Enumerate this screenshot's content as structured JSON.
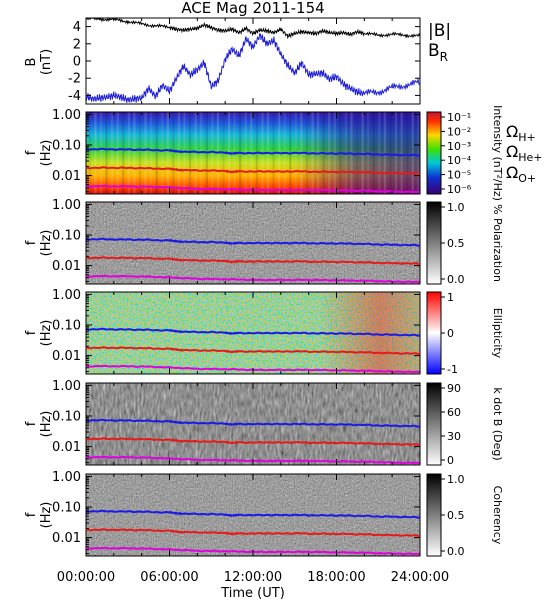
{
  "title": "ACE Mag 2011-154",
  "colors": {
    "B_total": "#000000",
    "B_R": "#1f1fd6",
    "omega_H": "#1a1ae6",
    "omega_He": "#e61a1a",
    "omega_O": "#e000e0",
    "axes": "#000000",
    "background": "#ffffff"
  },
  "chart_data": [
    {
      "type": "line",
      "ylabel": "B",
      "yunit": "(nT)",
      "ylim": [
        -5,
        5
      ],
      "yticks": [
        "4",
        "2",
        "0",
        "-2",
        "-4"
      ],
      "xlim": [
        0,
        24
      ],
      "series": [
        {
          "name": "|B|",
          "color": "#000000",
          "x": [
            0,
            1,
            2,
            3,
            4,
            5,
            6,
            6.5,
            7,
            7.5,
            8,
            8.5,
            9,
            9.5,
            10,
            10.5,
            11,
            11.5,
            12,
            12.5,
            13,
            13.5,
            14,
            14.5,
            15,
            15.5,
            16,
            16.5,
            17,
            17.5,
            18,
            18.5,
            19,
            19.5,
            20,
            21,
            22,
            23,
            24
          ],
          "y": [
            4.9,
            4.9,
            4.8,
            4.6,
            4.3,
            4.1,
            3.9,
            3.7,
            3.6,
            3.7,
            3.8,
            4.2,
            3.9,
            3.6,
            3.5,
            3.7,
            3.3,
            3.8,
            3.2,
            3.6,
            3.5,
            3.3,
            3.7,
            2.9,
            3.2,
            3.4,
            3.3,
            3.2,
            3.5,
            3.3,
            3.2,
            3.3,
            3.1,
            3.4,
            3.2,
            3.0,
            3.1,
            3.0,
            2.9
          ]
        },
        {
          "name": "B_R",
          "color": "#1f1fd6",
          "x": [
            0,
            0.5,
            1,
            1.5,
            2,
            2.5,
            3,
            3.5,
            4,
            4.5,
            5,
            5.5,
            6,
            6.5,
            7,
            7.5,
            8,
            8.5,
            9,
            9.5,
            10,
            10.5,
            11,
            11.5,
            12,
            12.5,
            13,
            13.5,
            14,
            14.5,
            15,
            15.5,
            16,
            16.5,
            17,
            17.5,
            18,
            18.5,
            19,
            19.5,
            20,
            21,
            22,
            23,
            24
          ],
          "y": [
            -4.1,
            -4.4,
            -4.3,
            -4.2,
            -4.0,
            -4.2,
            -4.5,
            -4.4,
            -4.3,
            -3.2,
            -4.1,
            -2.8,
            -3.5,
            -2.0,
            -0.6,
            -1.6,
            -1.0,
            -0.2,
            -3.0,
            -2.3,
            0.2,
            1.4,
            0.6,
            2.6,
            1.6,
            3.0,
            2.0,
            2.4,
            0.8,
            -0.5,
            -1.4,
            -0.2,
            -1.6,
            -1.5,
            -1.4,
            -2.1,
            -1.8,
            -2.7,
            -3.2,
            -3.6,
            -3.8,
            -3.6,
            -3.1,
            -2.8,
            -2.5
          ]
        }
      ],
      "legend": [
        "|B|",
        "B_R"
      ],
      "legend_position": "right"
    },
    {
      "type": "heatmap",
      "ylabel": "f",
      "yunit": "(Hz)",
      "yscale": "log",
      "ylim": [
        0.0025,
        1.2
      ],
      "yticks": [
        "1.00",
        "0.10",
        "0.01"
      ],
      "colorbar_label": "Intensity (nT²/Hz)",
      "colorbar_ticks": [
        "10⁻¹",
        "10⁻²",
        "10⁻³",
        "10⁻⁴",
        "10⁻⁵",
        "10⁻⁶"
      ],
      "colorscale": "rainbow"
    },
    {
      "type": "heatmap",
      "ylabel": "f",
      "yunit": "(Hz)",
      "yscale": "log",
      "yticks": [
        "1.00",
        "0.10",
        "0.01"
      ],
      "colorbar_label": "% Polarization",
      "colorbar_ticks": [
        "1.0",
        "0.5",
        "0.0"
      ],
      "colorscale": "gray"
    },
    {
      "type": "heatmap",
      "ylabel": "f",
      "yunit": "(Hz)",
      "yscale": "log",
      "yticks": [
        "1.00",
        "0.10",
        "0.01"
      ],
      "colorbar_label": "Ellipticity",
      "colorbar_ticks": [
        "1",
        "0",
        "-1"
      ],
      "colorscale": "blue-white-red"
    },
    {
      "type": "heatmap",
      "ylabel": "f",
      "yunit": "(Hz)",
      "yscale": "log",
      "yticks": [
        "1.00",
        "0.10",
        "0.01"
      ],
      "colorbar_label": "k dot B (Deg)",
      "colorbar_ticks": [
        "90",
        "60",
        "30",
        "0"
      ],
      "colorscale": "gray"
    },
    {
      "type": "heatmap",
      "ylabel": "f",
      "yunit": "(Hz)",
      "yscale": "log",
      "yticks": [
        "1.00",
        "0.10",
        "0.01"
      ],
      "colorbar_label": "Coherency",
      "colorbar_ticks": [
        "1.0",
        "0.5",
        "0.0"
      ],
      "colorscale": "gray"
    }
  ],
  "legend": {
    "B_total": "|B|",
    "B_R_main": "B",
    "B_R_sub": "R",
    "omega_H_main": "Ω",
    "omega_H_sub": "H+",
    "omega_He_main": "Ω",
    "omega_He_sub": "He+",
    "omega_O_main": "Ω",
    "omega_O_sub": "O+"
  },
  "gyrofrequency_lines": [
    {
      "name": "Ω_H+",
      "color": "#1a1ae6",
      "x": [
        0,
        1,
        2,
        3,
        4,
        5,
        6,
        6.5,
        7,
        8,
        9,
        10,
        10.5,
        11,
        12,
        13,
        14,
        15,
        16,
        17,
        18,
        19,
        20,
        21,
        22,
        23,
        24
      ],
      "f": [
        0.072,
        0.073,
        0.072,
        0.071,
        0.07,
        0.068,
        0.066,
        0.063,
        0.06,
        0.059,
        0.058,
        0.057,
        0.052,
        0.055,
        0.054,
        0.055,
        0.054,
        0.055,
        0.054,
        0.053,
        0.053,
        0.052,
        0.051,
        0.049,
        0.048,
        0.047,
        0.046
      ]
    },
    {
      "name": "Ω_He+",
      "color": "#e61a1a",
      "x": [
        0,
        1,
        2,
        3,
        4,
        5,
        6,
        6.5,
        7,
        8,
        9,
        10,
        10.5,
        11,
        12,
        13,
        14,
        15,
        16,
        17,
        18,
        19,
        20,
        21,
        22,
        23,
        24
      ],
      "f": [
        0.018,
        0.018,
        0.018,
        0.0178,
        0.0175,
        0.017,
        0.0165,
        0.0158,
        0.015,
        0.0148,
        0.0145,
        0.0143,
        0.013,
        0.0138,
        0.0135,
        0.0138,
        0.0135,
        0.0138,
        0.0135,
        0.0133,
        0.0133,
        0.013,
        0.0128,
        0.0123,
        0.012,
        0.0118,
        0.0115
      ]
    },
    {
      "name": "Ω_O+",
      "color": "#e000e0",
      "x": [
        0,
        2,
        4,
        6,
        8,
        10,
        12,
        14,
        16,
        18,
        20,
        22,
        24
      ],
      "f": [
        0.0045,
        0.0045,
        0.0044,
        0.0041,
        0.0037,
        0.0036,
        0.0034,
        0.0034,
        0.0034,
        0.0033,
        0.0032,
        0.003,
        0.0029
      ]
    }
  ],
  "x_axis": {
    "label": "Time (UT)",
    "xlim": [
      0,
      24
    ],
    "ticks": [
      {
        "value": 0,
        "label": "00:00:00"
      },
      {
        "value": 6,
        "label": "06:00:00"
      },
      {
        "value": 12,
        "label": "12:00:00"
      },
      {
        "value": 18,
        "label": "18:00:00"
      },
      {
        "value": 24,
        "label": "24:00:00"
      }
    ]
  }
}
